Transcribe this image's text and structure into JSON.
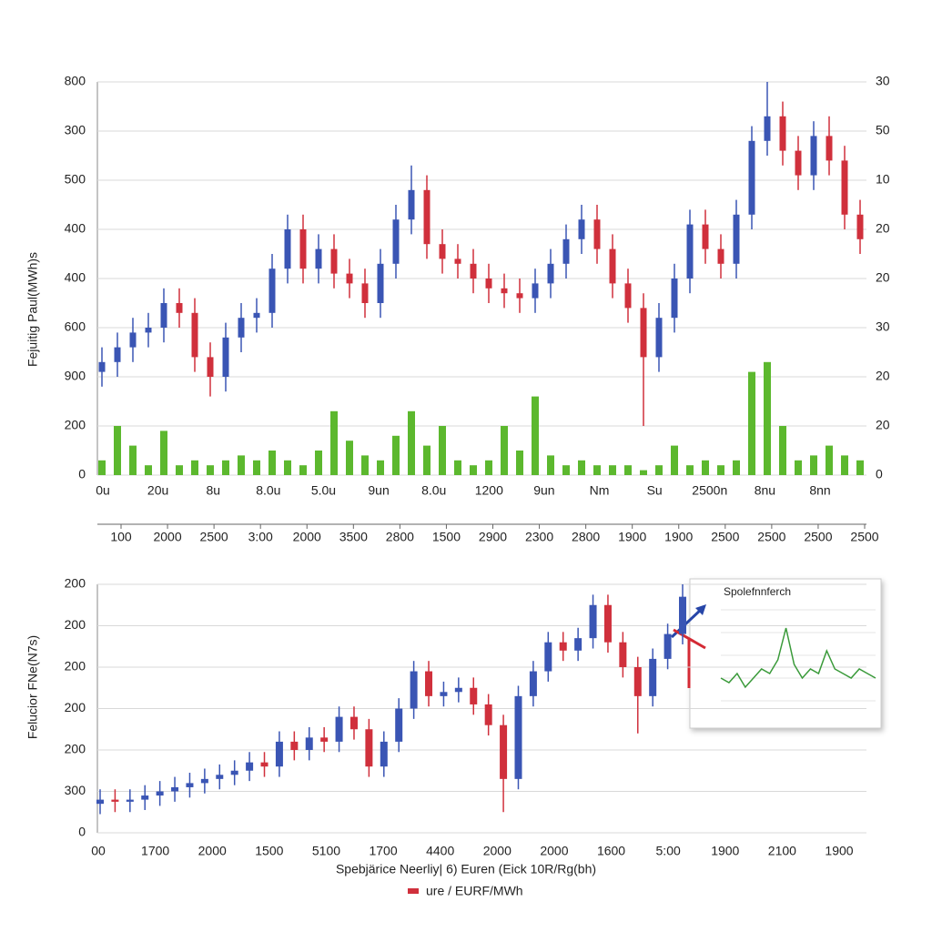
{
  "chart_data": [
    {
      "type": "candlestick",
      "y_label": "Fejuitig Paul(MWh)s",
      "up_color": "#3a55b4",
      "down_color": "#d0303c",
      "ylim": [
        0,
        8
      ],
      "yticks": [
        0,
        {
          "value": 1,
          "label": "200"
        },
        {
          "value": 2,
          "label": "900"
        },
        {
          "value": 3,
          "label": "600"
        },
        {
          "value": 4,
          "label": "400"
        },
        {
          "value": 5,
          "label": "400"
        },
        {
          "value": 6,
          "label": "500"
        },
        {
          "value": 7,
          "label": "300"
        },
        {
          "value": 8,
          "label": "800"
        }
      ],
      "y2lim": [
        0,
        8
      ],
      "y2ticks": [
        0,
        {
          "value": 1,
          "label": "20"
        },
        {
          "value": 2,
          "label": "20"
        },
        {
          "value": 3,
          "label": "30"
        },
        {
          "value": 4,
          "label": "20"
        },
        {
          "value": 5,
          "label": "20"
        },
        {
          "value": 6,
          "label": "10"
        },
        {
          "value": 7,
          "label": "50"
        },
        {
          "value": 8,
          "label": "30"
        }
      ],
      "grid": true,
      "x_labels": [
        "0u",
        "20u",
        "8u",
        "8.0u",
        "5.0u",
        "9un",
        "8.0u",
        "1200",
        "9un",
        "Nm",
        "Su",
        "2500n",
        "8nu",
        "8nn"
      ],
      "x2_labels": [
        "100",
        "2000",
        "2500",
        "3:00",
        "2000",
        "3500",
        "2800",
        "1500",
        "2900",
        "2300",
        "2800",
        "1900",
        "1900",
        "2500",
        "2500",
        "2500",
        "2500"
      ],
      "open": [
        2.1,
        2.3,
        2.6,
        2.9,
        3.0,
        3.5,
        3.3,
        2.4,
        2.0,
        2.8,
        3.2,
        3.3,
        4.2,
        5.0,
        4.2,
        4.6,
        4.1,
        3.9,
        3.5,
        4.3,
        5.2,
        5.8,
        4.7,
        4.4,
        4.3,
        4.0,
        3.8,
        3.7,
        3.6,
        3.9,
        4.3,
        4.8,
        5.2,
        4.6,
        3.9,
        3.4,
        2.4,
        3.2,
        4.0,
        5.1,
        4.6,
        4.3,
        5.3,
        6.8,
        7.3,
        6.6,
        6.1,
        6.9,
        6.4,
        5.3
      ],
      "high": [
        2.6,
        2.9,
        3.2,
        3.3,
        3.8,
        3.8,
        3.6,
        2.7,
        3.1,
        3.5,
        3.6,
        4.5,
        5.3,
        5.3,
        4.9,
        4.9,
        4.4,
        4.2,
        4.6,
        5.5,
        6.3,
        6.1,
        5.0,
        4.7,
        4.6,
        4.3,
        4.1,
        4.0,
        4.2,
        4.6,
        5.1,
        5.5,
        5.5,
        4.9,
        4.2,
        3.7,
        3.5,
        4.3,
        5.4,
        5.4,
        4.9,
        5.6,
        7.1,
        8.0,
        7.6,
        6.9,
        7.2,
        7.3,
        6.7,
        5.6
      ],
      "low": [
        1.8,
        2.0,
        2.3,
        2.6,
        2.7,
        3.0,
        2.1,
        1.6,
        1.7,
        2.5,
        2.9,
        3.0,
        3.9,
        3.9,
        3.9,
        3.8,
        3.6,
        3.2,
        3.2,
        4.0,
        4.9,
        4.4,
        4.1,
        4.0,
        3.7,
        3.5,
        3.4,
        3.3,
        3.3,
        3.6,
        4.0,
        4.5,
        4.3,
        3.6,
        3.1,
        1.0,
        2.1,
        2.9,
        3.7,
        4.3,
        4.0,
        4.0,
        5.0,
        6.5,
        6.3,
        5.8,
        5.8,
        6.1,
        5.0,
        4.5
      ],
      "close": [
        2.3,
        2.6,
        2.9,
        3.0,
        3.5,
        3.3,
        2.4,
        2.0,
        2.8,
        3.2,
        3.3,
        4.2,
        5.0,
        4.2,
        4.6,
        4.1,
        3.9,
        3.5,
        4.3,
        5.2,
        5.8,
        4.7,
        4.4,
        4.3,
        4.0,
        3.8,
        3.7,
        3.6,
        3.9,
        4.3,
        4.8,
        5.2,
        4.6,
        3.9,
        3.4,
        2.4,
        3.2,
        4.0,
        5.1,
        4.6,
        4.3,
        5.3,
        6.8,
        7.3,
        6.6,
        6.1,
        6.9,
        6.4,
        5.3,
        4.8
      ],
      "volume": {
        "color": "#5cb82e",
        "values": [
          0.3,
          1.0,
          0.6,
          0.2,
          0.9,
          0.2,
          0.3,
          0.2,
          0.3,
          0.4,
          0.3,
          0.5,
          0.3,
          0.2,
          0.5,
          1.3,
          0.7,
          0.4,
          0.3,
          0.8,
          1.3,
          0.6,
          1.0,
          0.3,
          0.2,
          0.3,
          1.0,
          0.5,
          1.6,
          0.4,
          0.2,
          0.3,
          0.2,
          0.2,
          0.2,
          0.1,
          0.2,
          0.6,
          0.2,
          0.3,
          0.2,
          0.3,
          2.1,
          2.3,
          1.0,
          0.3,
          0.4,
          0.6,
          0.4,
          0.3
        ]
      }
    },
    {
      "type": "candlestick",
      "y_label": "Felucior FNe(N7s)",
      "x_title": "Spebjärice Neerliy| 6) Euren (Eick 10R/Rg(bh)",
      "legend": {
        "label": "ure / EURF/MWh",
        "color": "#d0303c"
      },
      "up_color": "#3a55b4",
      "down_color": "#d0303c",
      "ylim": [
        0,
        6
      ],
      "yticks": [
        0,
        {
          "value": 1,
          "label": "300"
        },
        {
          "value": 2,
          "label": "200"
        },
        {
          "value": 3,
          "label": "200"
        },
        {
          "value": 4,
          "label": "200"
        },
        {
          "value": 5,
          "label": "200"
        },
        {
          "value": 6,
          "label": "200"
        }
      ],
      "grid": true,
      "x_labels": [
        "00",
        "1700",
        "2000",
        "1500",
        "5100",
        "1700",
        "4400",
        "2000",
        "2000",
        "1600",
        "5:00",
        "1900",
        "2100",
        "1900"
      ],
      "open": [
        0.7,
        0.8,
        0.75,
        0.8,
        0.9,
        1.0,
        1.1,
        1.2,
        1.3,
        1.4,
        1.5,
        1.7,
        1.6,
        2.2,
        2.0,
        2.3,
        2.2,
        2.8,
        2.5,
        1.6,
        2.2,
        3.0,
        3.9,
        3.3,
        3.4,
        3.5,
        3.1,
        2.6,
        1.3,
        3.3,
        3.9,
        4.6,
        4.4,
        4.7,
        5.5,
        4.6,
        4.0,
        3.3,
        4.2,
        4.8
      ],
      "high": [
        1.05,
        1.05,
        1.05,
        1.15,
        1.25,
        1.35,
        1.45,
        1.55,
        1.65,
        1.75,
        1.95,
        1.95,
        2.45,
        2.45,
        2.55,
        2.55,
        3.05,
        3.05,
        2.75,
        2.45,
        3.25,
        4.15,
        4.15,
        3.65,
        3.75,
        3.75,
        3.35,
        2.85,
        3.55,
        4.15,
        4.85,
        4.85,
        4.95,
        5.75,
        5.75,
        4.85,
        4.25,
        4.45,
        5.05,
        6.0
      ],
      "low": [
        0.45,
        0.5,
        0.5,
        0.55,
        0.65,
        0.75,
        0.85,
        0.95,
        1.05,
        1.15,
        1.25,
        1.35,
        1.35,
        1.75,
        1.75,
        1.95,
        1.95,
        2.25,
        1.35,
        1.35,
        1.95,
        2.75,
        3.05,
        3.05,
        3.15,
        2.85,
        2.35,
        0.5,
        1.05,
        3.05,
        3.65,
        4.15,
        4.15,
        4.45,
        4.35,
        3.75,
        2.4,
        3.05,
        3.95,
        4.55
      ],
      "close": [
        0.8,
        0.75,
        0.8,
        0.9,
        1.0,
        1.1,
        1.2,
        1.3,
        1.4,
        1.5,
        1.7,
        1.6,
        2.2,
        2.0,
        2.3,
        2.2,
        2.8,
        2.5,
        1.6,
        2.2,
        3.0,
        3.9,
        3.3,
        3.4,
        3.5,
        3.1,
        2.6,
        1.3,
        3.3,
        3.9,
        4.6,
        4.4,
        4.7,
        5.5,
        4.6,
        4.0,
        3.3,
        4.2,
        4.8,
        5.7
      ]
    },
    {
      "type": "line",
      "title": "Spolefnnferch",
      "color": "#3a9a3a",
      "ylim": [
        0,
        2
      ],
      "values": [
        0.5,
        0.4,
        0.6,
        0.3,
        0.5,
        0.7,
        0.6,
        0.9,
        1.6,
        0.8,
        0.5,
        0.7,
        0.6,
        1.1,
        0.7,
        0.6,
        0.5,
        0.7,
        0.6,
        0.5
      ]
    }
  ]
}
